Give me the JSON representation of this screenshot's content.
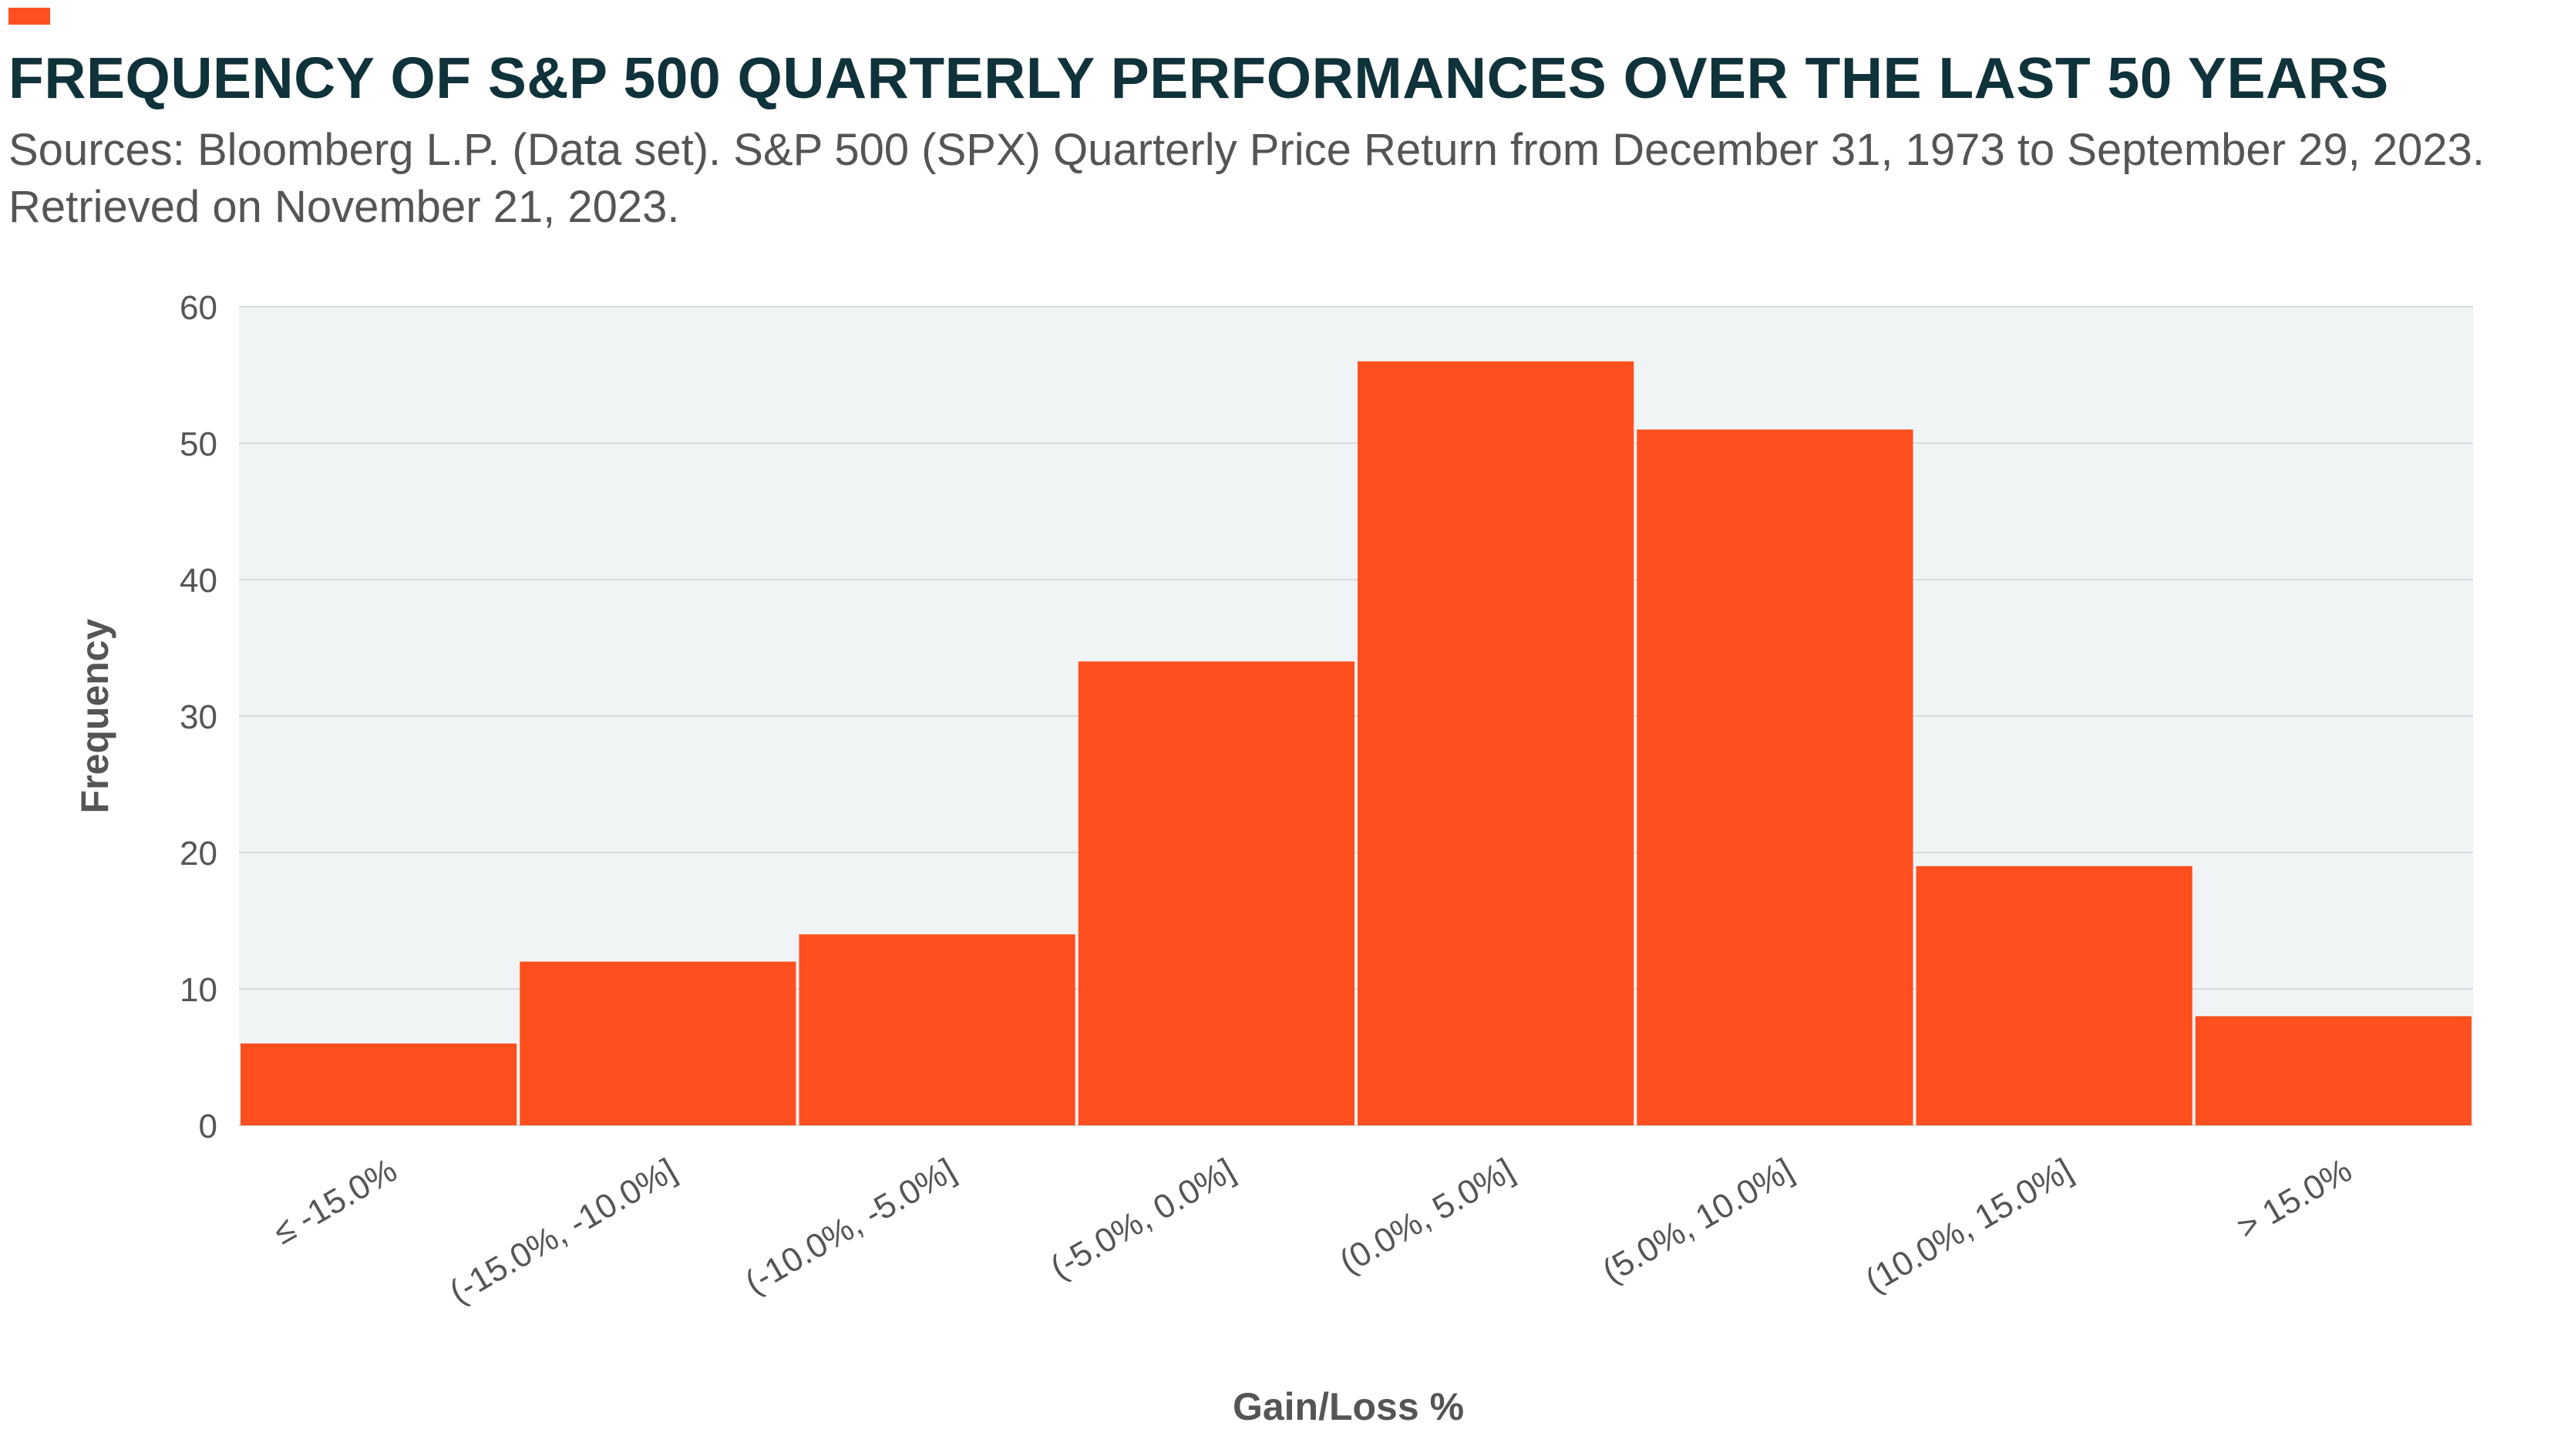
{
  "header": {
    "title": "FREQUENCY OF S&P 500 QUARTERLY PERFORMANCES OVER THE LAST 50 YEARS",
    "subtitle_line1": "Sources: Bloomberg L.P. (Data set). S&P 500 (SPX) Quarterly Price Return from December 31, 1973 to September 29, 2023.",
    "subtitle_line2": "Retrieved on November 21, 2023."
  },
  "colors": {
    "bar": "#ff4f1f",
    "plot_background": "#f1f4f5",
    "grid": "#d6dbdd",
    "title": "#10323a",
    "text": "#555555"
  },
  "chart_data": {
    "type": "bar",
    "title": "FREQUENCY OF S&P 500 QUARTERLY PERFORMANCES OVER THE LAST 50 YEARS",
    "xlabel": "Gain/Loss %",
    "ylabel": "Frequency",
    "categories": [
      "≤ -15.0%",
      "(-15.0%, -10.0%]",
      "(-10.0%, -5.0%]",
      "(-5.0%, 0.0%]",
      "(0.0%, 5.0%]",
      "(5.0%, 10.0%]",
      "(10.0%, 15.0%]",
      "> 15.0%"
    ],
    "values": [
      6,
      12,
      14,
      34,
      56,
      51,
      19,
      8
    ],
    "ylim": [
      0,
      60
    ],
    "yticks": [
      0,
      10,
      20,
      30,
      40,
      50,
      60
    ],
    "grid": true,
    "legend": "none"
  }
}
